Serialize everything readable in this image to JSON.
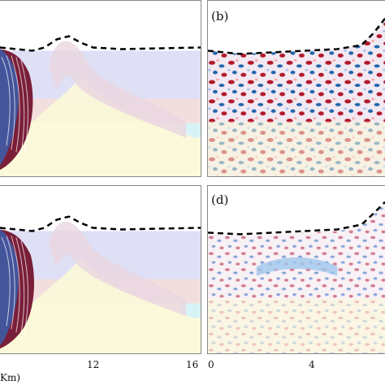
{
  "panels": {
    "a": {
      "label": ""
    },
    "b": {
      "label": "(b)"
    },
    "c": {
      "label": ""
    },
    "d": {
      "label": "(d)"
    }
  },
  "axes": {
    "left_ticks": [
      "12",
      "16"
    ],
    "right_ticks": [
      "0",
      "4"
    ],
    "xlabel": "Km)"
  },
  "colors": {
    "red": "#b2182b",
    "blue": "#2166ac",
    "lavender": "#dcdcf4",
    "pink": "#f2d6d6",
    "cream": "#fbfbdf",
    "cyan": "#d9f4f6",
    "topography": "#000000"
  },
  "icons": {
    "dashed_line": "topography-dashed-line"
  }
}
